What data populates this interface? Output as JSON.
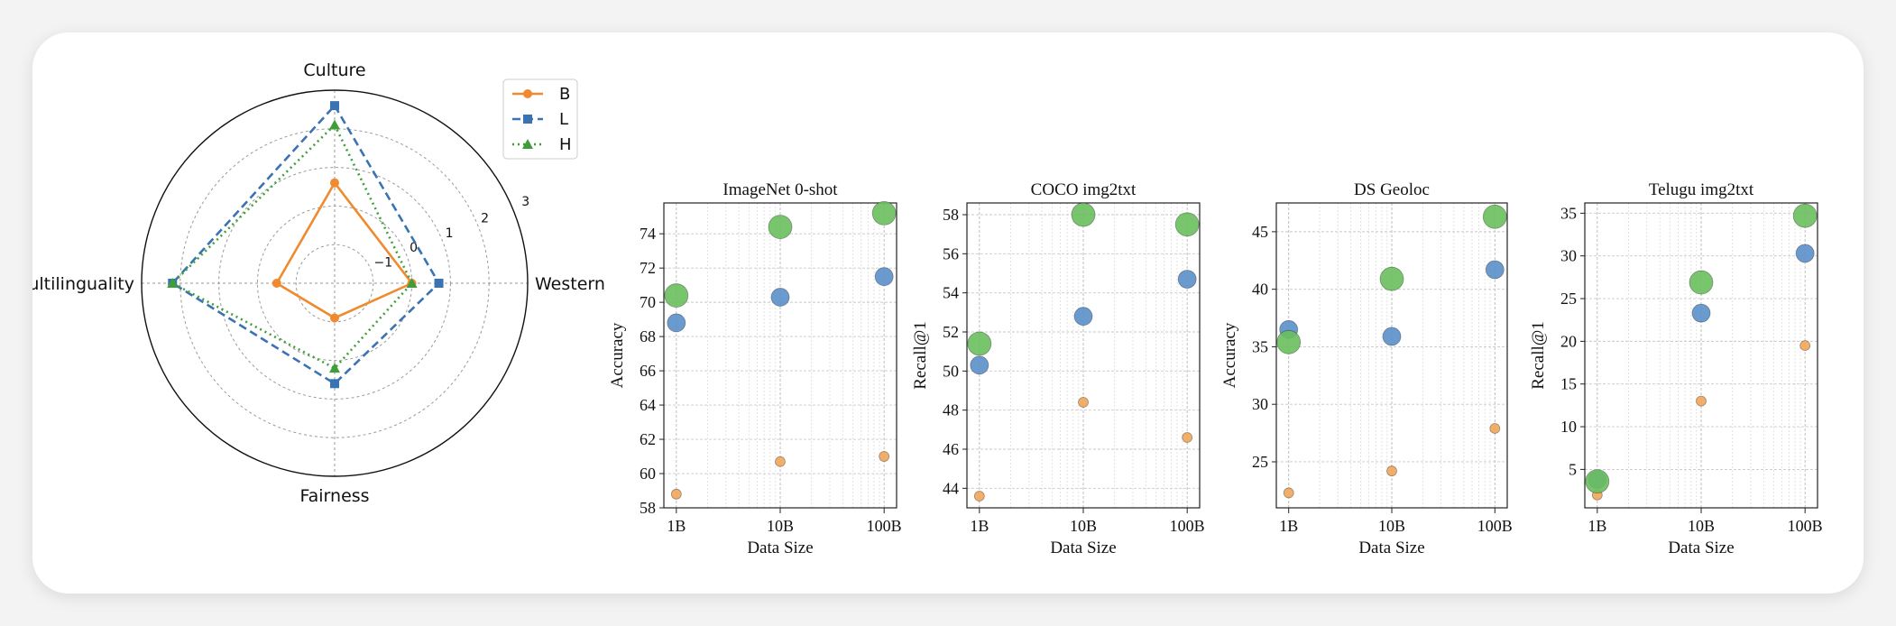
{
  "colors": {
    "B": "#ef8a2f",
    "L": "#3a73b3",
    "H": "#3f9e3a",
    "scatterB": "#f0a65a",
    "scatterL": "#5b8fc9",
    "scatterH": "#6abf5e"
  },
  "chart_data": [
    {
      "type": "radar",
      "axes": [
        "Culture",
        "Western",
        "Fairness",
        "Multilinguality"
      ],
      "rlim": [
        -2,
        3
      ],
      "radial_ticks": [
        -1,
        0,
        1,
        2,
        3
      ],
      "grid": true,
      "legend_placement": "top-right",
      "series": [
        {
          "name": "B",
          "marker": "circle",
          "line": "solid",
          "values": [
            0.6,
            0.0,
            -1.1,
            -0.5
          ]
        },
        {
          "name": "L",
          "marker": "square",
          "line": "dashed",
          "values": [
            2.6,
            0.7,
            0.6,
            2.2
          ]
        },
        {
          "name": "H",
          "marker": "triangle",
          "line": "dotted",
          "values": [
            2.1,
            0.0,
            0.2,
            2.2
          ]
        }
      ]
    },
    {
      "type": "scatter",
      "title": "ImageNet 0-shot",
      "xlabel": "Data Size",
      "ylabel": "Accuracy",
      "xscale": "log",
      "x_ticks": [
        "1B",
        "10B",
        "100B"
      ],
      "x": [
        1,
        10,
        100
      ],
      "ylim": [
        58,
        75.8
      ],
      "y_ticks": [
        58,
        60,
        62,
        64,
        66,
        68,
        70,
        72,
        74
      ],
      "grid": true,
      "series": [
        {
          "name": "B",
          "values": [
            58.8,
            60.7,
            61.0
          ]
        },
        {
          "name": "L",
          "values": [
            68.8,
            70.3,
            71.5
          ]
        },
        {
          "name": "H",
          "values": [
            70.4,
            74.4,
            75.2
          ]
        }
      ]
    },
    {
      "type": "scatter",
      "title": "COCO img2txt",
      "xlabel": "Data Size",
      "ylabel": "Recall@1",
      "xscale": "log",
      "x_ticks": [
        "1B",
        "10B",
        "100B"
      ],
      "x": [
        1,
        10,
        100
      ],
      "ylim": [
        43,
        58.6
      ],
      "y_ticks": [
        44,
        46,
        48,
        50,
        52,
        54,
        56,
        58
      ],
      "grid": true,
      "series": [
        {
          "name": "B",
          "values": [
            43.6,
            48.4,
            46.6
          ]
        },
        {
          "name": "L",
          "values": [
            50.3,
            52.8,
            54.7
          ]
        },
        {
          "name": "H",
          "values": [
            51.4,
            58.0,
            57.5
          ]
        }
      ]
    },
    {
      "type": "scatter",
      "title": "DS Geoloc",
      "xlabel": "Data Size",
      "ylabel": "Accuracy",
      "xscale": "log",
      "x_ticks": [
        "1B",
        "10B",
        "100B"
      ],
      "x": [
        1,
        10,
        100
      ],
      "ylim": [
        21,
        47.5
      ],
      "y_ticks": [
        25,
        30,
        35,
        40,
        45
      ],
      "grid": true,
      "series": [
        {
          "name": "B",
          "values": [
            22.3,
            24.2,
            27.9
          ]
        },
        {
          "name": "L",
          "values": [
            36.5,
            35.9,
            41.7
          ]
        },
        {
          "name": "H",
          "values": [
            35.4,
            40.9,
            46.3
          ]
        }
      ]
    },
    {
      "type": "scatter",
      "title": "Telugu img2txt",
      "xlabel": "Data Size",
      "ylabel": "Recall@1",
      "xscale": "log",
      "x_ticks": [
        "1B",
        "10B",
        "100B"
      ],
      "x": [
        1,
        10,
        100
      ],
      "ylim": [
        0.5,
        36.2
      ],
      "y_ticks": [
        5,
        10,
        15,
        20,
        25,
        30,
        35
      ],
      "grid": true,
      "series": [
        {
          "name": "B",
          "values": [
            2.0,
            13.0,
            19.5
          ]
        },
        {
          "name": "L",
          "values": [
            3.8,
            23.3,
            30.3
          ]
        },
        {
          "name": "H",
          "values": [
            3.6,
            26.9,
            34.7
          ]
        }
      ]
    }
  ]
}
